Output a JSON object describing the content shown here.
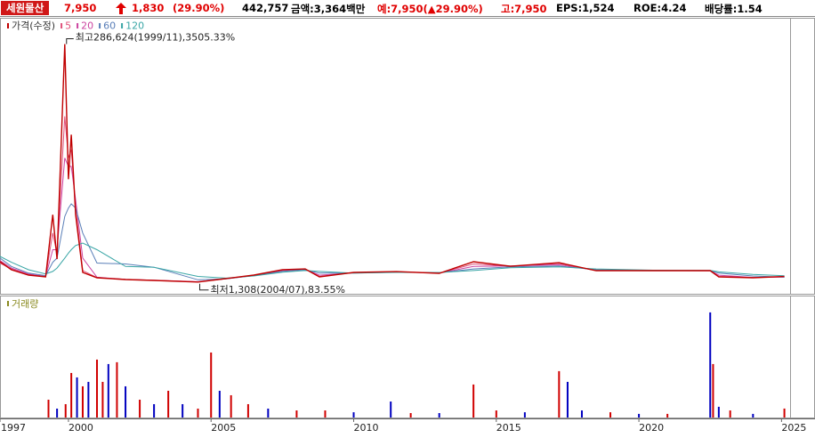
{
  "header": {
    "name": "세원물산",
    "price": "7,950",
    "change": "1,830",
    "change_rate": "(29.90%)",
    "volume": "442,757",
    "amount": "금액:3,364백만",
    "expected": "예:7,950(▲29.90%)",
    "high": "고:7,950",
    "eps": "EPS:1,524",
    "roe": "ROE:4.24",
    "dividend": "배당률:1.54"
  },
  "chart_data": [
    {
      "type": "line",
      "x": [
        1997.6,
        1998.0,
        1998.6,
        1999.2,
        1999.45,
        1999.6,
        1999.87,
        2000.0,
        2000.1,
        2000.25,
        2000.5,
        2001.0,
        2002.0,
        2003.0,
        2004.54,
        2005.5,
        2006.5,
        2007.5,
        2008.3,
        2008.8,
        2010.0,
        2011.5,
        2013.0,
        2014.2,
        2015.5,
        2017.2,
        2018.5,
        2020.5,
        2022.5,
        2022.8,
        2024.0,
        2025.1
      ],
      "series": [
        {
          "name": "가격(수정)",
          "color": "#c00000",
          "values": [
            25600,
            16000,
            9600,
            7500,
            82000,
            28800,
            286624,
            124600,
            178000,
            82000,
            12800,
            6400,
            4300,
            3200,
            1308,
            5300,
            9600,
            16000,
            17000,
            7500,
            12800,
            13800,
            11700,
            25600,
            20200,
            24500,
            14900,
            14900,
            14900,
            7500,
            6400,
            7950
          ]
        },
        {
          "name": "5",
          "color": "#e0507a",
          "values": [
            24000,
            17000,
            10000,
            8000,
            60000,
            35000,
            200000,
            150000,
            160000,
            90000,
            15000,
            6600,
            4400,
            3300,
            1500,
            5200,
            9400,
            15500,
            16800,
            8000,
            12600,
            13700,
            11800,
            23000,
            20300,
            23500,
            15000,
            14800,
            14700,
            8000,
            6600,
            7600
          ]
        },
        {
          "name": "20",
          "color": "#cc44a0",
          "values": [
            27000,
            18000,
            11000,
            8000,
            40000,
            40000,
            150000,
            140000,
            140000,
            100000,
            30000,
            7000,
            4500,
            3400,
            1700,
            5000,
            9200,
            15000,
            16500,
            9500,
            12400,
            13500,
            12000,
            20000,
            20500,
            22000,
            15500,
            14900,
            14900,
            9500,
            6800,
            7300
          ]
        },
        {
          "name": "60",
          "color": "#5a7fb8",
          "values": [
            30000,
            20000,
            12000,
            9000,
            25000,
            30000,
            80000,
            90000,
            95000,
            90000,
            60000,
            24000,
            23000,
            19000,
            4000,
            5000,
            9000,
            14000,
            16000,
            12000,
            12000,
            13000,
            12500,
            17000,
            19500,
            20500,
            16000,
            15000,
            15000,
            12000,
            8500,
            7000
          ]
        },
        {
          "name": "120",
          "color": "#3aa6a6",
          "values": [
            32000,
            25000,
            16000,
            11000,
            14000,
            18000,
            30000,
            36000,
            40000,
            45000,
            48000,
            40000,
            20000,
            19000,
            8000,
            6000,
            8500,
            13000,
            15000,
            14000,
            12000,
            12800,
            12700,
            15000,
            18500,
            19500,
            17000,
            15500,
            15200,
            13500,
            10500,
            8800
          ]
        }
      ],
      "annotations": {
        "high": "최고286,624(1999/11),3505.33%",
        "low": "최저1,308(2004/07),83.55%"
      },
      "xlim": [
        1997.6,
        2025.3
      ],
      "ylim": [
        0,
        316000
      ]
    },
    {
      "type": "bar",
      "title": "거래량",
      "x": [
        1999.3,
        1999.6,
        1999.9,
        2000.1,
        2000.3,
        2000.5,
        2000.7,
        2001.0,
        2001.2,
        2001.4,
        2001.7,
        2002.0,
        2002.5,
        2003.0,
        2003.5,
        2004.0,
        2004.54,
        2005.0,
        2005.3,
        2005.7,
        2006.3,
        2007.0,
        2008.0,
        2009.0,
        2010.0,
        2011.3,
        2012.0,
        2013.0,
        2014.2,
        2015.0,
        2016.0,
        2017.2,
        2017.5,
        2018.0,
        2019.0,
        2020.0,
        2021.0,
        2022.5,
        2022.6,
        2022.8,
        2023.2,
        2024.0,
        2025.1
      ],
      "values": [
        880000,
        440000,
        660000,
        2200000,
        1980000,
        1540000,
        1760000,
        2860000,
        1760000,
        2640000,
        2730000,
        1540000,
        880000,
        660000,
        1320000,
        660000,
        440000,
        3210000,
        1320000,
        1100000,
        660000,
        440000,
        350000,
        350000,
        260000,
        790000,
        220000,
        220000,
        1630000,
        350000,
        260000,
        2290000,
        1760000,
        350000,
        260000,
        180000,
        180000,
        5190000,
        2640000,
        530000,
        350000,
        180000,
        442757
      ],
      "bar_colors": [
        "#d00000",
        "#0000c0",
        "#d00000",
        "#d00000",
        "#0000c0",
        "#d00000",
        "#0000c0",
        "#d00000",
        "#d00000",
        "#0000c0",
        "#d00000",
        "#0000c0",
        "#d00000",
        "#0000c0",
        "#d00000",
        "#0000c0",
        "#d00000",
        "#d00000",
        "#0000c0",
        "#d00000",
        "#d00000",
        "#0000c0",
        "#d00000",
        "#d00000",
        "#0000c0",
        "#0000c0",
        "#d00000",
        "#0000c0",
        "#d00000",
        "#d00000",
        "#0000c0",
        "#d00000",
        "#0000c0",
        "#0000c0",
        "#d00000",
        "#0000c0",
        "#d00000",
        "#0000c0",
        "#d00000",
        "#0000c0",
        "#d00000",
        "#0000c0",
        "#d00000"
      ],
      "xlim": [
        1997.6,
        2025.3
      ],
      "ylim": [
        0,
        5450000
      ],
      "xticks": [
        {
          "value": 1997.6,
          "label": "1997"
        },
        2000,
        2005,
        2010,
        2015,
        2020,
        2025
      ]
    }
  ]
}
